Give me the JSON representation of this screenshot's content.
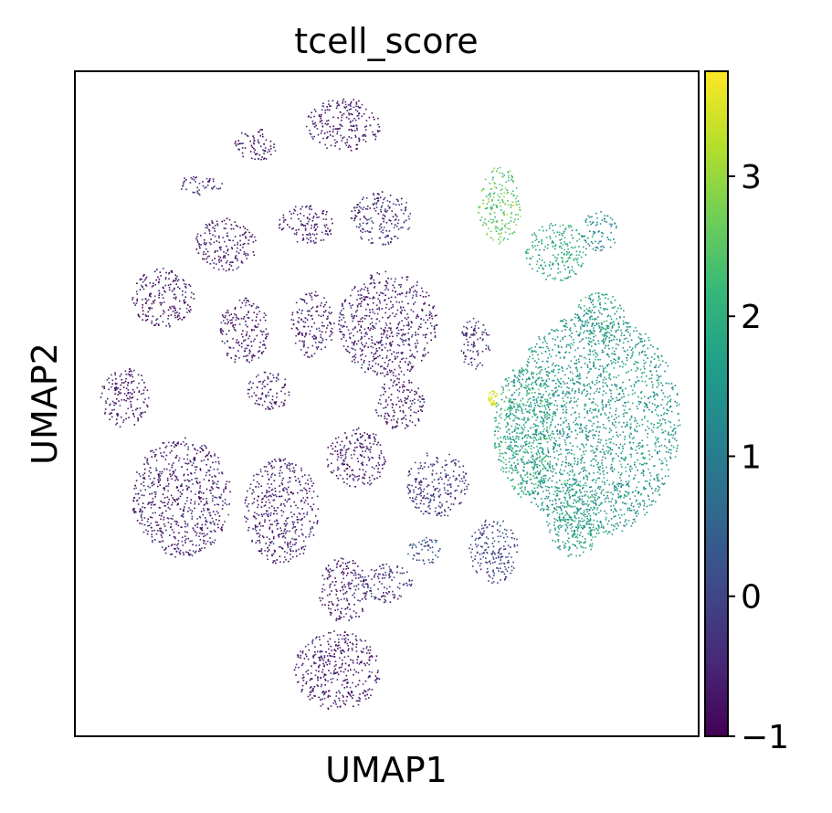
{
  "chart_data": {
    "type": "scatter",
    "title": "tcell_score",
    "xlabel": "UMAP1",
    "ylabel": "UMAP2",
    "xticks_shown": false,
    "yticks_shown": false,
    "colorbar": {
      "colormap": "viridis",
      "range": [
        -1,
        3.75
      ],
      "ticks": [
        {
          "value": -1,
          "label": "−1"
        },
        {
          "value": 0,
          "label": "0"
        },
        {
          "value": 1,
          "label": "1"
        },
        {
          "value": 2,
          "label": "2"
        },
        {
          "value": 3,
          "label": "3"
        }
      ],
      "colors": [
        "#440154",
        "#482878",
        "#3e4989",
        "#31688e",
        "#26828e",
        "#1f9e89",
        "#35b779",
        "#6ece58",
        "#b5de2b",
        "#fde725"
      ]
    },
    "clusters": [
      {
        "x": 0.43,
        "y": 0.92,
        "rx": 0.06,
        "ry": 0.04,
        "score": -0.7
      },
      {
        "x": 0.29,
        "y": 0.89,
        "rx": 0.035,
        "ry": 0.025,
        "score": -0.7
      },
      {
        "x": 0.2,
        "y": 0.83,
        "rx": 0.035,
        "ry": 0.015,
        "score": -0.4
      },
      {
        "x": 0.49,
        "y": 0.78,
        "rx": 0.05,
        "ry": 0.04,
        "score": -0.4
      },
      {
        "x": 0.37,
        "y": 0.77,
        "rx": 0.045,
        "ry": 0.03,
        "score": -0.6
      },
      {
        "x": 0.24,
        "y": 0.74,
        "rx": 0.05,
        "ry": 0.04,
        "score": -0.7
      },
      {
        "x": 0.14,
        "y": 0.66,
        "rx": 0.05,
        "ry": 0.045,
        "score": -0.7
      },
      {
        "x": 0.27,
        "y": 0.61,
        "rx": 0.04,
        "ry": 0.05,
        "score": -0.7
      },
      {
        "x": 0.38,
        "y": 0.62,
        "rx": 0.035,
        "ry": 0.05,
        "score": -0.7
      },
      {
        "x": 0.5,
        "y": 0.62,
        "rx": 0.08,
        "ry": 0.08,
        "score": -0.6
      },
      {
        "x": 0.52,
        "y": 0.5,
        "rx": 0.04,
        "ry": 0.04,
        "score": -0.7
      },
      {
        "x": 0.64,
        "y": 0.59,
        "rx": 0.025,
        "ry": 0.04,
        "score": -0.3
      },
      {
        "x": 0.08,
        "y": 0.51,
        "rx": 0.04,
        "ry": 0.045,
        "score": -0.7
      },
      {
        "x": 0.31,
        "y": 0.52,
        "rx": 0.035,
        "ry": 0.03,
        "score": -0.6
      },
      {
        "x": 0.45,
        "y": 0.42,
        "rx": 0.05,
        "ry": 0.045,
        "score": -0.7
      },
      {
        "x": 0.17,
        "y": 0.36,
        "rx": 0.08,
        "ry": 0.09,
        "score": -0.6
      },
      {
        "x": 0.33,
        "y": 0.34,
        "rx": 0.06,
        "ry": 0.08,
        "score": -0.6
      },
      {
        "x": 0.58,
        "y": 0.38,
        "rx": 0.05,
        "ry": 0.05,
        "score": -0.3
      },
      {
        "x": 0.67,
        "y": 0.28,
        "rx": 0.04,
        "ry": 0.05,
        "score": -0.1
      },
      {
        "x": 0.5,
        "y": 0.23,
        "rx": 0.04,
        "ry": 0.03,
        "score": -0.4
      },
      {
        "x": 0.43,
        "y": 0.22,
        "rx": 0.04,
        "ry": 0.05,
        "score": -0.7
      },
      {
        "x": 0.42,
        "y": 0.1,
        "rx": 0.07,
        "ry": 0.06,
        "score": -0.7
      },
      {
        "x": 0.56,
        "y": 0.28,
        "rx": 0.03,
        "ry": 0.02,
        "score": 0.1
      },
      {
        "x": 0.68,
        "y": 0.8,
        "rx": 0.035,
        "ry": 0.06,
        "score": 2.5
      },
      {
        "x": 0.77,
        "y": 0.73,
        "rx": 0.05,
        "ry": 0.045,
        "score": 1.8
      },
      {
        "x": 0.84,
        "y": 0.76,
        "rx": 0.03,
        "ry": 0.03,
        "score": 1.3
      },
      {
        "x": 0.83,
        "y": 0.47,
        "rx": 0.14,
        "ry": 0.17,
        "score": 1.5
      },
      {
        "x": 0.72,
        "y": 0.46,
        "rx": 0.05,
        "ry": 0.1,
        "score": 1.9
      },
      {
        "x": 0.8,
        "y": 0.33,
        "rx": 0.045,
        "ry": 0.06,
        "score": 1.7
      },
      {
        "x": 0.84,
        "y": 0.63,
        "rx": 0.04,
        "ry": 0.04,
        "score": 1.6
      },
      {
        "x": 0.67,
        "y": 0.51,
        "rx": 0.008,
        "ry": 0.012,
        "score": 3.6
      }
    ]
  }
}
